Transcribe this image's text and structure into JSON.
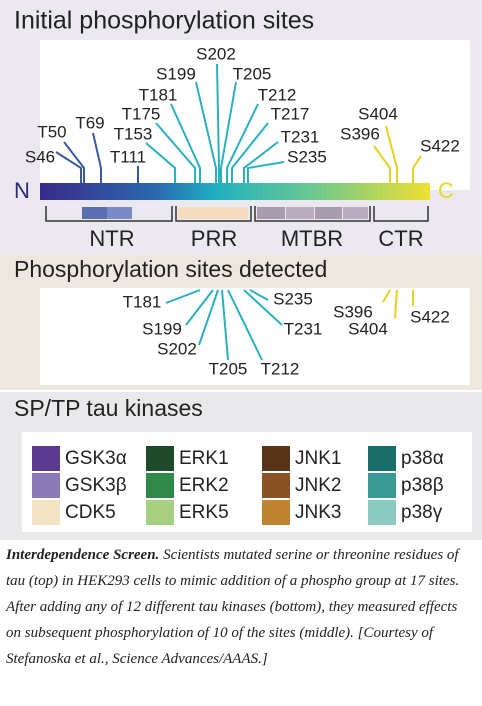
{
  "initial": {
    "title": "Initial phosphorylation sites",
    "sites": [
      "S46",
      "T50",
      "T69",
      "T111",
      "T153",
      "T175",
      "T181",
      "S199",
      "S202",
      "T205",
      "T212",
      "T217",
      "T231",
      "S235",
      "S396",
      "S404",
      "S422"
    ],
    "n_label": "N",
    "c_label": "C",
    "domains": [
      "NTR",
      "PRR",
      "MTBR",
      "CTR"
    ]
  },
  "detected": {
    "title": "Phosphorylation sites detected",
    "sites": [
      "T181",
      "S199",
      "S202",
      "T205",
      "T212",
      "T231",
      "S235",
      "S396",
      "S404",
      "S422"
    ]
  },
  "kinases": {
    "title": "SP/TP tau kinases",
    "items": [
      {
        "name": "GSK3α",
        "color": "#5b3a8f"
      },
      {
        "name": "GSK3β",
        "color": "#8a7bb8"
      },
      {
        "name": "CDK5",
        "color": "#f3e3c3"
      },
      {
        "name": "ERK1",
        "color": "#1f4a2a"
      },
      {
        "name": "ERK2",
        "color": "#2f8a4a"
      },
      {
        "name": "ERK5",
        "color": "#a6cf80"
      },
      {
        "name": "JNK1",
        "color": "#5a3418"
      },
      {
        "name": "JNK2",
        "color": "#8a5222"
      },
      {
        "name": "JNK3",
        "color": "#c08430"
      },
      {
        "name": "p38α",
        "color": "#1a6e6a"
      },
      {
        "name": "p38β",
        "color": "#3a9a95"
      },
      {
        "name": "p38γ",
        "color": "#8ccbc2"
      }
    ]
  },
  "caption": {
    "lead": "Interdependence Screen.",
    "text": "Scientists mutated serine or threonine residues of tau (top) in HEK293 cells to mimic addition of a phospho group at 17 sites. After adding any of 12 different tau kinases (bottom), they measured effects on subsequent phosphorylation of 10 of the sites (middle). [Courtesy of Stefanoska et al., Science Advances/AAAS.]"
  }
}
